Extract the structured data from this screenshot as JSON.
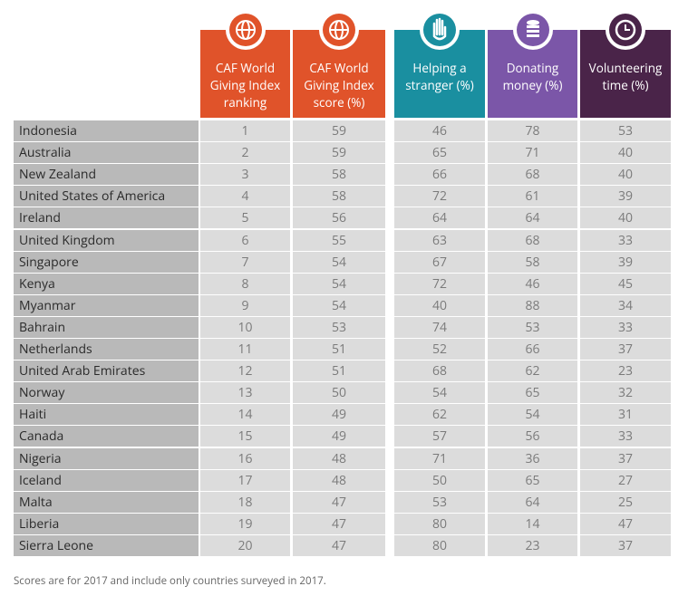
{
  "table": {
    "columns": [
      "CAF World Giving Index ranking",
      "CAF World Giving Index score (%)",
      "Helping a stranger (%)",
      "Donating money (%)",
      "Volunteering time (%)"
    ],
    "rows": [
      [
        "Indonesia",
        1,
        59,
        46,
        78,
        53
      ],
      [
        "Australia",
        2,
        59,
        65,
        71,
        40
      ],
      [
        "New Zealand",
        3,
        58,
        66,
        68,
        40
      ],
      [
        "United States of America",
        4,
        58,
        72,
        61,
        39
      ],
      [
        "Ireland",
        5,
        56,
        64,
        64,
        40
      ],
      [
        "United Kingdom",
        6,
        55,
        63,
        68,
        33
      ],
      [
        "Singapore",
        7,
        54,
        67,
        58,
        39
      ],
      [
        "Kenya",
        8,
        54,
        72,
        46,
        45
      ],
      [
        "Myanmar",
        9,
        54,
        40,
        88,
        34
      ],
      [
        "Bahrain",
        10,
        53,
        74,
        53,
        33
      ],
      [
        "Netherlands",
        11,
        51,
        52,
        66,
        37
      ],
      [
        "United Arab Emirates",
        12,
        51,
        68,
        62,
        23
      ],
      [
        "Norway",
        13,
        50,
        54,
        65,
        32
      ],
      [
        "Haiti",
        14,
        49,
        62,
        54,
        31
      ],
      [
        "Canada",
        15,
        49,
        57,
        56,
        33
      ],
      [
        "Nigeria",
        16,
        48,
        71,
        36,
        37
      ],
      [
        "Iceland",
        17,
        48,
        50,
        65,
        27
      ],
      [
        "Malta",
        18,
        47,
        53,
        64,
        25
      ],
      [
        "Liberia",
        19,
        47,
        80,
        14,
        47
      ],
      [
        "Sierra Leone",
        20,
        47,
        80,
        23,
        37
      ]
    ]
  },
  "footnote": "Scores are for 2017 and include only countries surveyed in 2017."
}
